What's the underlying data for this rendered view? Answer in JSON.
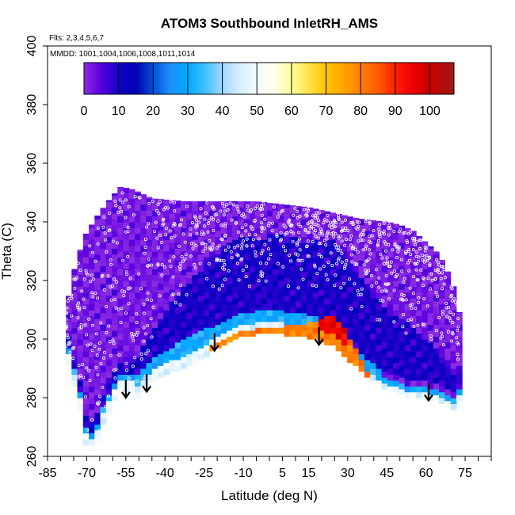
{
  "chart_data": {
    "type": "heatmap",
    "title": "ATOM3 Southbound InletRH_AMS",
    "flights_note": "Flts: 2,3,4,5,6,7",
    "dates_note": "MMDD: 1001,1004,1006,1008,1011,1014",
    "xlabel": "Latitude (deg N)",
    "ylabel": "Theta (C)",
    "xlim": [
      -85,
      85
    ],
    "ylim": [
      260,
      400
    ],
    "x_tick_labels": [
      "-85",
      "-70",
      "-55",
      "-40",
      "-25",
      "-10",
      "5",
      "15",
      "30",
      "45",
      "60",
      "75"
    ],
    "x_tick_values": [
      -85,
      -70,
      -55,
      -40,
      -25,
      -10,
      5,
      15,
      30,
      45,
      60,
      75
    ],
    "x_minor_tick_step": 5,
    "y_tick_labels": [
      "260",
      "280",
      "300",
      "320",
      "340",
      "360",
      "380",
      "400"
    ],
    "y_tick_values": [
      260,
      280,
      300,
      320,
      340,
      360,
      380,
      400
    ],
    "colorbar": {
      "range": [
        0,
        107
      ],
      "tick_labels": [
        "0",
        "10",
        "20",
        "30",
        "40",
        "50",
        "60",
        "70",
        "80",
        "90",
        "100"
      ],
      "tick_values": [
        0,
        10,
        20,
        30,
        40,
        50,
        60,
        70,
        80,
        90,
        100
      ],
      "stops": [
        [
          0,
          "#8a2be2"
        ],
        [
          5,
          "#5a00e0"
        ],
        [
          10,
          "#1400c8"
        ],
        [
          15,
          "#0000b4"
        ],
        [
          20,
          "#0050d8"
        ],
        [
          25,
          "#1e90ff"
        ],
        [
          30,
          "#00aaff"
        ],
        [
          35,
          "#40c0ff"
        ],
        [
          40,
          "#9fd8ff"
        ],
        [
          45,
          "#d6eeff"
        ],
        [
          50,
          "#f4fbff"
        ],
        [
          55,
          "#ffffe8"
        ],
        [
          60,
          "#ffff9c"
        ],
        [
          65,
          "#ffe24a"
        ],
        [
          70,
          "#ffc400"
        ],
        [
          75,
          "#ffa500"
        ],
        [
          80,
          "#ff8000"
        ],
        [
          85,
          "#ff5a00"
        ],
        [
          90,
          "#ff2000"
        ],
        [
          95,
          "#ee0000"
        ],
        [
          100,
          "#c80000"
        ],
        [
          107,
          "#a01818"
        ]
      ]
    },
    "rh_zones": {
      "background_rh": 2,
      "top_theta": [
        [
          -78,
          310
        ],
        [
          -75,
          323
        ],
        [
          -71,
          335
        ],
        [
          -66,
          342
        ],
        [
          -61,
          348
        ],
        [
          -57,
          352
        ],
        [
          -52,
          351
        ],
        [
          -45,
          348
        ],
        [
          -32,
          347
        ],
        [
          -20,
          347
        ],
        [
          -5,
          347
        ],
        [
          5,
          346
        ],
        [
          15,
          345
        ],
        [
          25,
          343
        ],
        [
          35,
          341
        ],
        [
          45,
          340
        ],
        [
          50,
          339
        ],
        [
          55,
          337
        ],
        [
          60,
          333
        ],
        [
          65,
          329
        ],
        [
          70,
          320
        ],
        [
          73,
          308
        ]
      ],
      "bottom_theta": [
        [
          -78,
          295
        ],
        [
          -75,
          286
        ],
        [
          -72,
          275
        ],
        [
          -70,
          263
        ],
        [
          -67,
          262
        ],
        [
          -63,
          273
        ],
        [
          -58,
          282
        ],
        [
          -54,
          283
        ],
        [
          -50,
          280
        ],
        [
          -46,
          285
        ],
        [
          -42,
          287
        ],
        [
          -35,
          290
        ],
        [
          -28,
          293
        ],
        [
          -20,
          297
        ],
        [
          -12,
          301
        ],
        [
          -5,
          302
        ],
        [
          5,
          302
        ],
        [
          15,
          301
        ],
        [
          25,
          298
        ],
        [
          32,
          292
        ],
        [
          38,
          287
        ],
        [
          45,
          283
        ],
        [
          52,
          281
        ],
        [
          60,
          280
        ],
        [
          65,
          279
        ],
        [
          70,
          276
        ],
        [
          73,
          280
        ]
      ],
      "upper_band": {
        "rh": 10,
        "lower_offset": 6,
        "upper_offset": [
          [
            -55,
            10
          ],
          [
            -45,
            18
          ],
          [
            -35,
            26
          ],
          [
            -25,
            30
          ],
          [
            -15,
            34
          ],
          [
            -5,
            32
          ],
          [
            5,
            34
          ],
          [
            15,
            32
          ],
          [
            25,
            36
          ],
          [
            35,
            32
          ],
          [
            45,
            28
          ],
          [
            55,
            24
          ],
          [
            65,
            16
          ],
          [
            72,
            10
          ]
        ]
      },
      "middle_band": {
        "rh": 30,
        "lower_offset": 2,
        "upper_offset": [
          [
            -58,
            5
          ],
          [
            -45,
            8
          ],
          [
            -35,
            9
          ],
          [
            -25,
            9
          ],
          [
            -15,
            8
          ],
          [
            -5,
            8
          ],
          [
            5,
            8
          ],
          [
            15,
            8
          ],
          [
            25,
            8
          ],
          [
            35,
            6
          ],
          [
            45,
            4
          ],
          [
            55,
            3
          ],
          [
            65,
            3
          ],
          [
            72,
            3
          ]
        ]
      },
      "near_surface_band": {
        "rh": 48,
        "upper_offset": [
          [
            -58,
            3
          ],
          [
            -45,
            3
          ],
          [
            -30,
            3
          ],
          [
            -20,
            3
          ],
          [
            -10,
            4
          ],
          [
            0,
            4
          ],
          [
            10,
            4
          ],
          [
            20,
            4
          ],
          [
            30,
            3
          ],
          [
            40,
            2
          ],
          [
            50,
            2
          ],
          [
            60,
            2
          ],
          [
            72,
            2
          ]
        ]
      },
      "warm_patch": {
        "rh": 80,
        "lat_range": [
          -22,
          38
        ],
        "lower_offset": 0,
        "upper_offset": [
          [
            -22,
            1
          ],
          [
            -10,
            2
          ],
          [
            0,
            2
          ],
          [
            10,
            3
          ],
          [
            18,
            6
          ],
          [
            24,
            8
          ],
          [
            30,
            7
          ],
          [
            36,
            4
          ],
          [
            38,
            1
          ]
        ]
      },
      "red_patch": {
        "rh": 95,
        "lat_range": [
          18,
          30
        ],
        "lower_offset": 3,
        "upper_offset": [
          [
            18,
            7
          ],
          [
            24,
            9
          ],
          [
            30,
            8
          ]
        ]
      }
    },
    "markers": {
      "description": "white open-circle sample points",
      "count": 900,
      "color": "#ffffff"
    },
    "arrows": [
      {
        "lat": -55,
        "theta": 286,
        "direction": "down"
      },
      {
        "lat": -47,
        "theta": 288,
        "direction": "down"
      },
      {
        "lat": -21,
        "theta": 302,
        "direction": "down"
      },
      {
        "lat": 19,
        "theta": 304,
        "direction": "down"
      },
      {
        "lat": 61,
        "theta": 285,
        "direction": "down"
      }
    ]
  }
}
